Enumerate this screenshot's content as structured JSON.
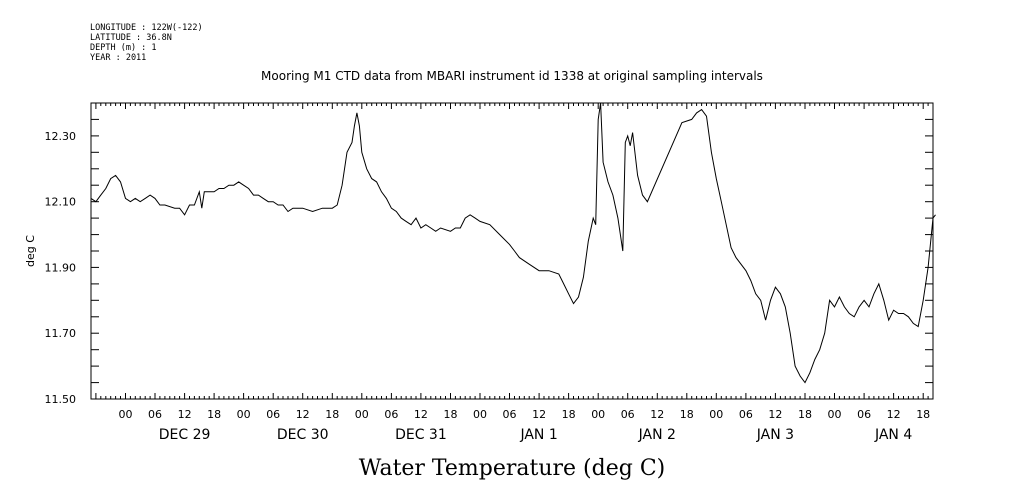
{
  "header": {
    "longitude": "LONGITUDE : 122W(-122)",
    "latitude": "LATITUDE : 36.8N",
    "depth": "DEPTH (m) : 1",
    "year": "YEAR : 2011"
  },
  "chart_data": {
    "type": "line",
    "title": "Mooring M1 CTD data from MBARI instrument id 1338 at original sampling intervals",
    "xlabel": "Water Temperature (deg C)",
    "ylabel": "deg C",
    "ylim": [
      11.5,
      12.4
    ],
    "xlim": [
      "2011-12-28T17:00",
      "2012-01-04T20:00"
    ],
    "yticks": [
      "11.50",
      "11.70",
      "11.90",
      "12.10",
      "12.30"
    ],
    "xtick_labels": [
      "00",
      "06",
      "12",
      "18",
      "00",
      "06",
      "12",
      "18",
      "00",
      "06",
      "12",
      "18",
      "00",
      "06",
      "12",
      "18",
      "00",
      "06",
      "12",
      "18",
      "00",
      "06",
      "12",
      "18",
      "00",
      "06",
      "12",
      "18"
    ],
    "day_labels": [
      "DEC 29",
      "DEC 30",
      "DEC 31",
      "JAN  1",
      "JAN  2",
      "JAN  3",
      "JAN  4"
    ],
    "grid": false,
    "series": [
      {
        "color": "#000000",
        "points": [
          [
            "2011-12-28T17:00",
            12.11
          ],
          [
            "2011-12-28T18:00",
            12.1
          ],
          [
            "2011-12-28T19:00",
            12.12
          ],
          [
            "2011-12-28T20:00",
            12.14
          ],
          [
            "2011-12-28T21:00",
            12.17
          ],
          [
            "2011-12-28T22:00",
            12.18
          ],
          [
            "2011-12-28T23:00",
            12.16
          ],
          [
            "2011-12-29T00:00",
            12.11
          ],
          [
            "2011-12-29T01:00",
            12.1
          ],
          [
            "2011-12-29T02:00",
            12.11
          ],
          [
            "2011-12-29T03:00",
            12.1
          ],
          [
            "2011-12-29T04:00",
            12.11
          ],
          [
            "2011-12-29T05:00",
            12.12
          ],
          [
            "2011-12-29T06:00",
            12.11
          ],
          [
            "2011-12-29T07:00",
            12.09
          ],
          [
            "2011-12-29T08:00",
            12.09
          ],
          [
            "2011-12-29T10:00",
            12.08
          ],
          [
            "2011-12-29T11:00",
            12.08
          ],
          [
            "2011-12-29T12:00",
            12.06
          ],
          [
            "2011-12-29T13:00",
            12.09
          ],
          [
            "2011-12-29T14:00",
            12.09
          ],
          [
            "2011-12-29T15:00",
            12.13
          ],
          [
            "2011-12-29T15:30",
            12.08
          ],
          [
            "2011-12-29T16:00",
            12.13
          ],
          [
            "2011-12-29T18:00",
            12.13
          ],
          [
            "2011-12-29T19:00",
            12.14
          ],
          [
            "2011-12-29T20:00",
            12.14
          ],
          [
            "2011-12-29T21:00",
            12.15
          ],
          [
            "2011-12-29T22:00",
            12.15
          ],
          [
            "2011-12-29T23:00",
            12.16
          ],
          [
            "2011-12-30T00:00",
            12.15
          ],
          [
            "2011-12-30T01:00",
            12.14
          ],
          [
            "2011-12-30T02:00",
            12.12
          ],
          [
            "2011-12-30T03:00",
            12.12
          ],
          [
            "2011-12-30T04:00",
            12.11
          ],
          [
            "2011-12-30T05:00",
            12.1
          ],
          [
            "2011-12-30T06:00",
            12.1
          ],
          [
            "2011-12-30T07:00",
            12.09
          ],
          [
            "2011-12-30T08:00",
            12.09
          ],
          [
            "2011-12-30T09:00",
            12.07
          ],
          [
            "2011-12-30T10:00",
            12.08
          ],
          [
            "2011-12-30T12:00",
            12.08
          ],
          [
            "2011-12-30T14:00",
            12.07
          ],
          [
            "2011-12-30T16:00",
            12.08
          ],
          [
            "2011-12-30T18:00",
            12.08
          ],
          [
            "2011-12-30T19:00",
            12.09
          ],
          [
            "2011-12-30T20:00",
            12.15
          ],
          [
            "2011-12-30T21:00",
            12.25
          ],
          [
            "2011-12-30T22:00",
            12.28
          ],
          [
            "2011-12-30T22:30",
            12.33
          ],
          [
            "2011-12-30T23:00",
            12.37
          ],
          [
            "2011-12-30T23:30",
            12.33
          ],
          [
            "2011-12-31T00:00",
            12.25
          ],
          [
            "2011-12-31T01:00",
            12.2
          ],
          [
            "2011-12-31T02:00",
            12.17
          ],
          [
            "2011-12-31T03:00",
            12.16
          ],
          [
            "2011-12-31T04:00",
            12.13
          ],
          [
            "2011-12-31T05:00",
            12.11
          ],
          [
            "2011-12-31T06:00",
            12.08
          ],
          [
            "2011-12-31T07:00",
            12.07
          ],
          [
            "2011-12-31T08:00",
            12.05
          ],
          [
            "2011-12-31T09:00",
            12.04
          ],
          [
            "2011-12-31T10:00",
            12.03
          ],
          [
            "2011-12-31T11:00",
            12.05
          ],
          [
            "2011-12-31T12:00",
            12.02
          ],
          [
            "2011-12-31T13:00",
            12.03
          ],
          [
            "2011-12-31T14:00",
            12.02
          ],
          [
            "2011-12-31T15:00",
            12.01
          ],
          [
            "2011-12-31T16:00",
            12.02
          ],
          [
            "2011-12-31T18:00",
            12.01
          ],
          [
            "2011-12-31T19:00",
            12.02
          ],
          [
            "2011-12-31T20:00",
            12.02
          ],
          [
            "2011-12-31T21:00",
            12.05
          ],
          [
            "2011-12-31T22:00",
            12.06
          ],
          [
            "2011-12-31T23:00",
            12.05
          ],
          [
            "2012-01-01T00:00",
            12.04
          ],
          [
            "2012-01-01T02:00",
            12.03
          ],
          [
            "2012-01-01T04:00",
            12.0
          ],
          [
            "2012-01-01T06:00",
            11.97
          ],
          [
            "2012-01-01T07:00",
            11.95
          ],
          [
            "2012-01-01T08:00",
            11.93
          ],
          [
            "2012-01-01T10:00",
            11.91
          ],
          [
            "2012-01-01T12:00",
            11.89
          ],
          [
            "2012-01-01T14:00",
            11.89
          ],
          [
            "2012-01-01T16:00",
            11.88
          ],
          [
            "2012-01-01T17:00",
            11.85
          ],
          [
            "2012-01-01T18:00",
            11.82
          ],
          [
            "2012-01-01T19:00",
            11.79
          ],
          [
            "2012-01-01T20:00",
            11.81
          ],
          [
            "2012-01-01T21:00",
            11.87
          ],
          [
            "2012-01-01T22:00",
            11.98
          ],
          [
            "2012-01-01T23:00",
            12.05
          ],
          [
            "2012-01-01T23:30",
            12.03
          ],
          [
            "2012-01-02T00:00",
            12.35
          ],
          [
            "2012-01-02T00:30",
            12.4
          ],
          [
            "2012-01-02T01:00",
            12.22
          ],
          [
            "2012-01-02T02:00",
            12.16
          ],
          [
            "2012-01-02T03:00",
            12.12
          ],
          [
            "2012-01-02T04:00",
            12.05
          ],
          [
            "2012-01-02T05:00",
            11.95
          ],
          [
            "2012-01-02T05:30",
            12.28
          ],
          [
            "2012-01-02T06:00",
            12.3
          ],
          [
            "2012-01-02T06:30",
            12.27
          ],
          [
            "2012-01-02T07:00",
            12.31
          ],
          [
            "2012-01-02T08:00",
            12.18
          ],
          [
            "2012-01-02T09:00",
            12.12
          ],
          [
            "2012-01-02T10:00",
            12.1
          ],
          [
            "2012-01-02T17:00",
            12.34
          ],
          [
            "2012-01-02T19:00",
            12.35
          ],
          [
            "2012-01-02T20:00",
            12.37
          ],
          [
            "2012-01-02T21:00",
            12.38
          ],
          [
            "2012-01-02T22:00",
            12.36
          ],
          [
            "2012-01-02T23:00",
            12.25
          ],
          [
            "2012-01-03T00:00",
            12.17
          ],
          [
            "2012-01-03T01:00",
            12.1
          ],
          [
            "2012-01-03T02:00",
            12.03
          ],
          [
            "2012-01-03T03:00",
            11.96
          ],
          [
            "2012-01-03T04:00",
            11.93
          ],
          [
            "2012-01-03T06:00",
            11.89
          ],
          [
            "2012-01-03T07:00",
            11.86
          ],
          [
            "2012-01-03T08:00",
            11.82
          ],
          [
            "2012-01-03T09:00",
            11.8
          ],
          [
            "2012-01-03T10:00",
            11.74
          ],
          [
            "2012-01-03T11:00",
            11.8
          ],
          [
            "2012-01-03T12:00",
            11.84
          ],
          [
            "2012-01-03T13:00",
            11.82
          ],
          [
            "2012-01-03T14:00",
            11.78
          ],
          [
            "2012-01-03T15:00",
            11.7
          ],
          [
            "2012-01-03T16:00",
            11.6
          ],
          [
            "2012-01-03T17:00",
            11.57
          ],
          [
            "2012-01-03T18:00",
            11.55
          ],
          [
            "2012-01-03T19:00",
            11.58
          ],
          [
            "2012-01-03T20:00",
            11.62
          ],
          [
            "2012-01-03T21:00",
            11.65
          ],
          [
            "2012-01-03T22:00",
            11.7
          ],
          [
            "2012-01-03T23:00",
            11.8
          ],
          [
            "2012-01-04T00:00",
            11.78
          ],
          [
            "2012-01-04T01:00",
            11.81
          ],
          [
            "2012-01-04T02:00",
            11.78
          ],
          [
            "2012-01-04T03:00",
            11.76
          ],
          [
            "2012-01-04T04:00",
            11.75
          ],
          [
            "2012-01-04T05:00",
            11.78
          ],
          [
            "2012-01-04T06:00",
            11.8
          ],
          [
            "2012-01-04T07:00",
            11.78
          ],
          [
            "2012-01-04T08:00",
            11.82
          ],
          [
            "2012-01-04T09:00",
            11.85
          ],
          [
            "2012-01-04T10:00",
            11.8
          ],
          [
            "2012-01-04T11:00",
            11.74
          ],
          [
            "2012-01-04T12:00",
            11.77
          ],
          [
            "2012-01-04T13:00",
            11.76
          ],
          [
            "2012-01-04T14:00",
            11.76
          ],
          [
            "2012-01-04T15:00",
            11.75
          ],
          [
            "2012-01-04T16:00",
            11.73
          ],
          [
            "2012-01-04T17:00",
            11.72
          ],
          [
            "2012-01-04T18:00",
            11.8
          ],
          [
            "2012-01-04T19:00",
            11.9
          ],
          [
            "2012-01-04T20:00",
            12.05
          ],
          [
            "2012-01-04T20:30",
            12.06
          ]
        ]
      }
    ]
  }
}
